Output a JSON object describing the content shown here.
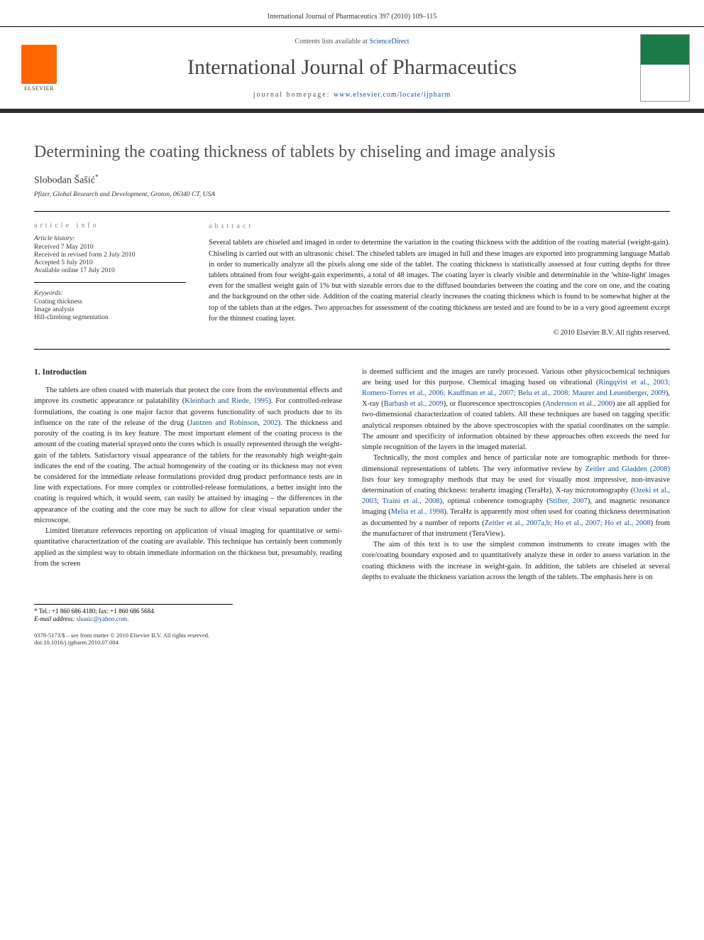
{
  "header": {
    "citation": "International Journal of Pharmaceutics 397 (2010) 109–115"
  },
  "masthead": {
    "elsevier_label": "ELSEVIER",
    "contents_prefix": "Contents lists available at ",
    "contents_link": "ScienceDirect",
    "journal_name": "International Journal of Pharmaceutics",
    "homepage_prefix": "journal homepage: ",
    "homepage_url": "www.elsevier.com/locate/ijpharm"
  },
  "title": "Determining the coating thickness of tablets by chiseling and image analysis",
  "author": {
    "name": "Slobodan Šašić",
    "marker": "*"
  },
  "affiliation": "Pfizer, Global Research and Development, Groton, 06340 CT, USA",
  "info": {
    "heading": "article info",
    "history_label": "Article history:",
    "history": [
      "Received 7 May 2010",
      "Received in revised form 2 July 2010",
      "Accepted 5 July 2010",
      "Available online 17 July 2010"
    ],
    "keywords_label": "Keywords:",
    "keywords": [
      "Coating thickness",
      "Image analysis",
      "Hill-climbing segmentation"
    ]
  },
  "abstract": {
    "heading": "abstract",
    "text": "Several tablets are chiseled and imaged in order to determine the variation in the coating thickness with the addition of the coating material (weight-gain). Chiseling is carried out with an ultrasonic chisel. The chiseled tablets are imaged in full and these images are exported into programming language Matlab in order to numerically analyze all the pixels along one side of the tablet. The coating thickness is statistically assessed at four cutting depths for three tablets obtained from four weight-gain experiments, a total of 48 images. The coating layer is clearly visible and determinable in the 'white-light' images even for the smallest weight gain of 1% but with sizeable errors due to the diffused boundaries between the coating and the core on one, and the coating and the background on the other side. Addition of the coating material clearly increases the coating thickness which is found to be somewhat higher at the top of the tablets than at the edges. Two approaches for assessment of the coating thickness are tested and are found to be in a very good agreement except for the thinnest coating layer.",
    "copyright": "© 2010 Elsevier B.V. All rights reserved."
  },
  "body": {
    "section_heading": "1. Introduction",
    "col1_p1_a": "The tablets are often coated with materials that protect the core from the environmental effects and improve its cosmetic appearance or palatability (",
    "col1_p1_ref1": "Kleinbach and Riede, 1995",
    "col1_p1_b": "). For controlled-release formulations, the coating is one major factor that governs functionality of such products due to its influence on the rate of the release of the drug (",
    "col1_p1_ref2": "Jantzen and Robinson, 2002",
    "col1_p1_c": "). The thickness and porosity of the coating is its key feature. The most important element of the coating process is the amount of the coating material sprayed onto the cores which is usually represented through the weight-gain of the tablets. Satisfactory visual appearance of the tablets for the reasonably high weight-gain indicates the end of the coating. The actual homogeneity of the coating or its thickness may not even be considered for the immediate release formulations provided drug product performance tests are in line with expectations. For more complex or controlled-release formulations, a better insight into the coating is required which, it would seem, can easily be attained by imaging – the differences in the appearance of the coating and the core may be such to allow for clear visual separation under the microscope.",
    "col1_p2": "Limited literature references reporting on application of visual imaging for quantitative or semi-quantitative characterization of the coating are available. This technique has certainly been commonly applied as the simplest way to obtain immediate information on the thickness but, presumably, reading from the screen",
    "col2_p1_a": "is deemed sufficient and the images are rarely processed. Various other physicochemical techniques are being used for this purpose. Chemical imaging based on vibrational (",
    "col2_p1_ref1": "Ringqvist et al., 2003; Romero-Torres et al., 2006; Kauffman et al., 2007; Belu et al., 2008; Maurer and Leuenberger, 2009",
    "col2_p1_b": "), X-ray (",
    "col2_p1_ref2": "Barbash et al., 2009",
    "col2_p1_c": "), or fluorescence spectroscopies (",
    "col2_p1_ref3": "Andersson et al., 2000",
    "col2_p1_d": ") are all applied for two-dimensional characterization of coated tablets. All these techniques are based on tagging specific analytical responses obtained by the above spectroscopies with the spatial coordinates on the sample. The amount and specificity of information obtained by these approaches often exceeds the need for simple recognition of the layers in the imaged material.",
    "col2_p2_a": "Technically, the most complex and hence of particular note are tomographic methods for three-dimensional representations of tablets. The very informative review by ",
    "col2_p2_ref1": "Zeitler and Gladden (2008)",
    "col2_p2_b": " lists four key tomography methods that may be used for visually most impressive, non-invasive determination of coating thickness: terahertz imaging (TeraHz), X-ray microtomography (",
    "col2_p2_ref2": "Ozeki et al., 2003; Traini et al., 2008",
    "col2_p2_c": "), optimal coherence tomography (",
    "col2_p2_ref3": "Stifter, 2007",
    "col2_p2_d": "), and magnetic resonance imaging (",
    "col2_p2_ref4": "Melia et al., 1998",
    "col2_p2_e": "). TeraHz is apparently most often used for coating thickness determination as documented by a number of reports (",
    "col2_p2_ref5": "Zeitler et al., 2007a,b; Ho et al., 2007; Ho et al., 2008",
    "col2_p2_f": ") from the manufacturer of that instrument (TeraView).",
    "col2_p3": "The aim of this text is to use the simplest common instruments to create images with the core/coating boundary exposed and to quantitatively analyze these in order to assess variation in the coating thickness with the increase in weight-gain. In addition, the tablets are chiseled at several depths to evaluate the thickness variation across the length of the tablets. The emphasis here is on"
  },
  "footnote": {
    "tel_label": "* Tel.: ",
    "tel": "+1 860 686 4180",
    "fax_label": "; fax: ",
    "fax": "+1 860 686 5684.",
    "email_label": "E-mail address: ",
    "email": "slsasic@yahoo.com."
  },
  "footer": {
    "line1": "0378-5173/$ – see front matter © 2010 Elsevier B.V. All rights reserved.",
    "line2": "doi:10.1016/j.ijpharm.2010.07.004"
  },
  "colors": {
    "link": "#1a4f8f",
    "elsevier_orange": "#ff6600",
    "cover_green": "#1a7a4a",
    "text": "#222222",
    "heading_gray": "#888888"
  }
}
